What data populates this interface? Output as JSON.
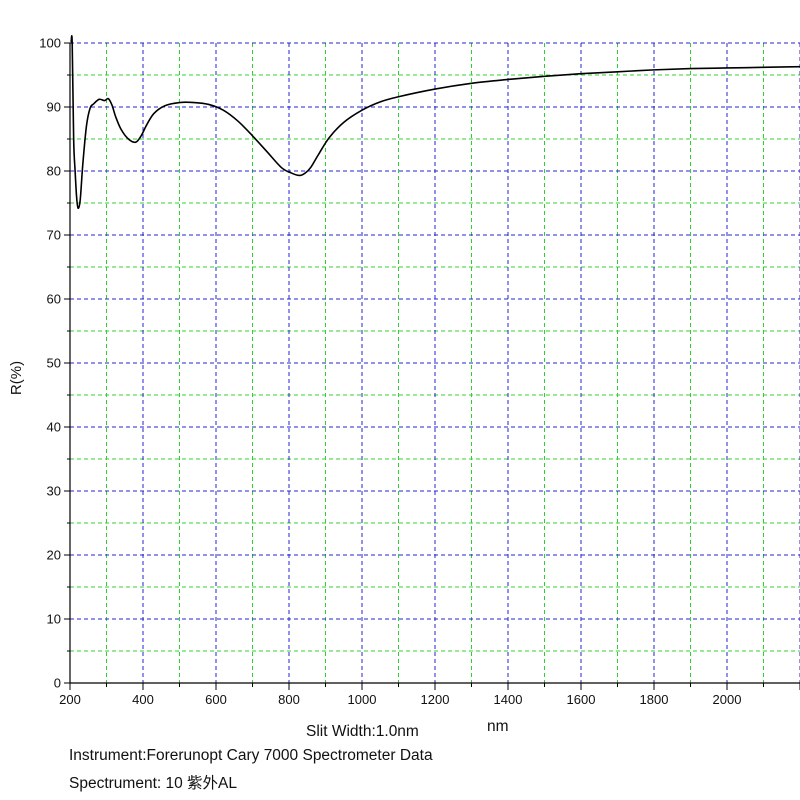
{
  "chart_data": {
    "type": "line",
    "title": "",
    "xlabel": "nm",
    "ylabel": "R(%)",
    "xlim": [
      200,
      2200
    ],
    "ylim": [
      0,
      100
    ],
    "x_ticks": [
      "200",
      "400",
      "600",
      "800",
      "1000",
      "1200",
      "1400",
      "1600",
      "1800",
      "2000"
    ],
    "y_ticks": [
      "0",
      "10",
      "20",
      "30",
      "40",
      "50",
      "60",
      "70",
      "80",
      "90",
      "100"
    ],
    "grid": true,
    "grid_style": "dashed blue (major) and green (minor)",
    "series": [
      {
        "color": "#000000",
        "x": [
          203,
          206,
          210,
          214,
          218,
          222,
          228,
          235,
          245,
          255,
          265,
          280,
          295,
          305,
          315,
          325,
          340,
          360,
          380,
          395,
          410,
          430,
          460,
          500,
          540,
          580,
          620,
          660,
          700,
          740,
          780,
          810,
          830,
          845,
          860,
          880,
          910,
          950,
          1000,
          1050,
          1100,
          1200,
          1300,
          1400,
          1500,
          1600,
          1700,
          1800,
          1900,
          2000,
          2100,
          2200
        ],
        "y": [
          100,
          100,
          85,
          80,
          76,
          74.2,
          75.5,
          81,
          87,
          89.8,
          90.5,
          91.2,
          91,
          91.3,
          90.3,
          88.5,
          86.5,
          85,
          84.5,
          85.5,
          87.2,
          89,
          90.2,
          90.7,
          90.7,
          90.4,
          89.5,
          87.8,
          85.5,
          83,
          80.5,
          79.6,
          79.3,
          79.7,
          80.6,
          82.5,
          85.2,
          87.6,
          89.5,
          90.8,
          91.6,
          92.8,
          93.7,
          94.3,
          94.8,
          95.2,
          95.5,
          95.8,
          96,
          96.1,
          96.2,
          96.3
        ]
      }
    ]
  },
  "footer": {
    "slit_width": "Slit Width:1.0nm",
    "instrument": "Instrument:Forerunopt Cary 7000 Spectrometer Data",
    "spectrument": "Spectrument:  10  紫外AL"
  }
}
